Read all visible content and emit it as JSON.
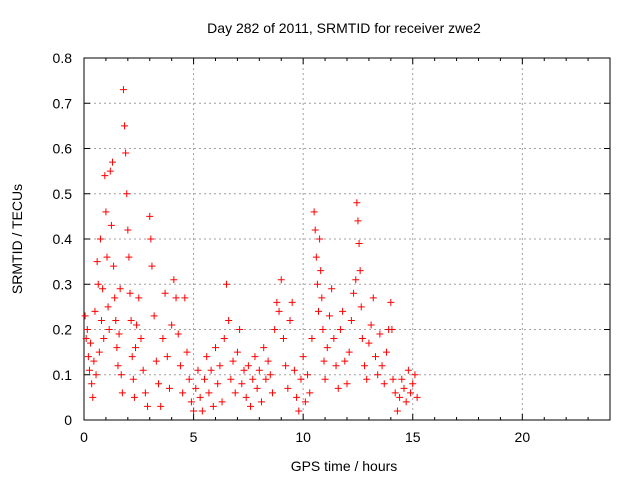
{
  "chart_data": {
    "type": "scatter",
    "title": "Day 282 of 2011, SRMTID for receiver zwe2",
    "xlabel": "GPS time / hours",
    "ylabel": "SRMTID / TECUs",
    "xlim": [
      0,
      24
    ],
    "ylim": [
      0,
      0.8
    ],
    "xticks": [
      0,
      5,
      10,
      15,
      20
    ],
    "xtick_labels": [
      "0",
      "5",
      "10",
      "15",
      "20"
    ],
    "yticks": [
      0,
      0.1,
      0.2,
      0.3,
      0.4,
      0.5,
      0.6,
      0.7,
      0.8
    ],
    "ytick_labels": [
      "0",
      "0.1",
      "0.2",
      "0.3",
      "0.4",
      "0.5",
      "0.6",
      "0.7",
      "0.8"
    ],
    "grid": true,
    "marker": "+",
    "color": "#ff0000",
    "series": [
      {
        "points": [
          [
            0.05,
            0.23
          ],
          [
            0.1,
            0.18
          ],
          [
            0.15,
            0.2
          ],
          [
            0.2,
            0.14
          ],
          [
            0.25,
            0.11
          ],
          [
            0.3,
            0.17
          ],
          [
            0.35,
            0.08
          ],
          [
            0.4,
            0.05
          ],
          [
            0.45,
            0.13
          ],
          [
            0.5,
            0.24
          ],
          [
            0.55,
            0.1
          ],
          [
            0.6,
            0.35
          ],
          [
            0.65,
            0.3
          ],
          [
            0.7,
            0.15
          ],
          [
            0.75,
            0.4
          ],
          [
            0.8,
            0.22
          ],
          [
            0.85,
            0.29
          ],
          [
            0.9,
            0.18
          ],
          [
            0.95,
            0.54
          ],
          [
            1.0,
            0.46
          ],
          [
            1.05,
            0.36
          ],
          [
            1.1,
            0.25
          ],
          [
            1.15,
            0.2
          ],
          [
            1.2,
            0.55
          ],
          [
            1.25,
            0.43
          ],
          [
            1.3,
            0.57
          ],
          [
            1.35,
            0.34
          ],
          [
            1.4,
            0.27
          ],
          [
            1.45,
            0.22
          ],
          [
            1.5,
            0.16
          ],
          [
            1.55,
            0.12
          ],
          [
            1.6,
            0.19
          ],
          [
            1.65,
            0.29
          ],
          [
            1.7,
            0.1
          ],
          [
            1.75,
            0.06
          ],
          [
            1.8,
            0.73
          ],
          [
            1.85,
            0.65
          ],
          [
            1.9,
            0.59
          ],
          [
            1.95,
            0.5
          ],
          [
            2.0,
            0.42
          ],
          [
            2.05,
            0.36
          ],
          [
            2.1,
            0.28
          ],
          [
            2.15,
            0.22
          ],
          [
            2.2,
            0.14
          ],
          [
            2.25,
            0.09
          ],
          [
            2.3,
            0.05
          ],
          [
            2.35,
            0.16
          ],
          [
            2.4,
            0.21
          ],
          [
            2.5,
            0.27
          ],
          [
            2.6,
            0.18
          ],
          [
            2.7,
            0.11
          ],
          [
            2.8,
            0.06
          ],
          [
            2.9,
            0.03
          ],
          [
            3.0,
            0.45
          ],
          [
            3.05,
            0.4
          ],
          [
            3.1,
            0.34
          ],
          [
            3.2,
            0.23
          ],
          [
            3.3,
            0.13
          ],
          [
            3.4,
            0.08
          ],
          [
            3.5,
            0.03
          ],
          [
            3.6,
            0.18
          ],
          [
            3.7,
            0.28
          ],
          [
            3.8,
            0.14
          ],
          [
            3.9,
            0.07
          ],
          [
            4.0,
            0.21
          ],
          [
            4.1,
            0.31
          ],
          [
            4.2,
            0.27
          ],
          [
            4.3,
            0.19
          ],
          [
            4.4,
            0.12
          ],
          [
            4.5,
            0.06
          ],
          [
            4.6,
            0.27
          ],
          [
            4.7,
            0.15
          ],
          [
            4.8,
            0.09
          ],
          [
            4.9,
            0.04
          ],
          [
            5.0,
            0.02
          ],
          [
            5.1,
            0.07
          ],
          [
            5.2,
            0.11
          ],
          [
            5.3,
            0.05
          ],
          [
            5.4,
            0.02
          ],
          [
            5.5,
            0.09
          ],
          [
            5.6,
            0.14
          ],
          [
            5.7,
            0.06
          ],
          [
            5.8,
            0.11
          ],
          [
            5.9,
            0.03
          ],
          [
            6.0,
            0.16
          ],
          [
            6.1,
            0.08
          ],
          [
            6.2,
            0.12
          ],
          [
            6.3,
            0.04
          ],
          [
            6.4,
            0.18
          ],
          [
            6.5,
            0.3
          ],
          [
            6.6,
            0.22
          ],
          [
            6.7,
            0.09
          ],
          [
            6.8,
            0.13
          ],
          [
            6.9,
            0.06
          ],
          [
            7.0,
            0.15
          ],
          [
            7.1,
            0.2
          ],
          [
            7.2,
            0.08
          ],
          [
            7.3,
            0.11
          ],
          [
            7.4,
            0.05
          ],
          [
            7.5,
            0.12
          ],
          [
            7.6,
            0.03
          ],
          [
            7.7,
            0.09
          ],
          [
            7.8,
            0.14
          ],
          [
            7.9,
            0.07
          ],
          [
            8.0,
            0.11
          ],
          [
            8.1,
            0.04
          ],
          [
            8.2,
            0.16
          ],
          [
            8.3,
            0.09
          ],
          [
            8.4,
            0.13
          ],
          [
            8.5,
            0.1
          ],
          [
            8.6,
            0.06
          ],
          [
            8.7,
            0.2
          ],
          [
            8.8,
            0.26
          ],
          [
            8.9,
            0.24
          ],
          [
            9.0,
            0.31
          ],
          [
            9.1,
            0.18
          ],
          [
            9.2,
            0.12
          ],
          [
            9.3,
            0.07
          ],
          [
            9.4,
            0.22
          ],
          [
            9.5,
            0.26
          ],
          [
            9.6,
            0.11
          ],
          [
            9.7,
            0.05
          ],
          [
            9.8,
            0.02
          ],
          [
            9.9,
            0.09
          ],
          [
            10.0,
            0.14
          ],
          [
            10.1,
            0.04
          ],
          [
            10.2,
            0.1
          ],
          [
            10.3,
            0.06
          ],
          [
            10.4,
            0.18
          ],
          [
            10.5,
            0.46
          ],
          [
            10.55,
            0.42
          ],
          [
            10.6,
            0.36
          ],
          [
            10.65,
            0.3
          ],
          [
            10.7,
            0.24
          ],
          [
            10.75,
            0.4
          ],
          [
            10.8,
            0.33
          ],
          [
            10.85,
            0.27
          ],
          [
            10.9,
            0.2
          ],
          [
            10.95,
            0.13
          ],
          [
            11.0,
            0.09
          ],
          [
            11.1,
            0.16
          ],
          [
            11.2,
            0.23
          ],
          [
            11.3,
            0.29
          ],
          [
            11.4,
            0.18
          ],
          [
            11.5,
            0.12
          ],
          [
            11.6,
            0.07
          ],
          [
            11.7,
            0.2
          ],
          [
            11.8,
            0.24
          ],
          [
            11.9,
            0.13
          ],
          [
            12.0,
            0.08
          ],
          [
            12.1,
            0.15
          ],
          [
            12.2,
            0.22
          ],
          [
            12.3,
            0.28
          ],
          [
            12.4,
            0.31
          ],
          [
            12.45,
            0.48
          ],
          [
            12.5,
            0.44
          ],
          [
            12.55,
            0.39
          ],
          [
            12.6,
            0.33
          ],
          [
            12.65,
            0.25
          ],
          [
            12.7,
            0.18
          ],
          [
            12.8,
            0.12
          ],
          [
            12.9,
            0.09
          ],
          [
            13.0,
            0.17
          ],
          [
            13.1,
            0.21
          ],
          [
            13.2,
            0.27
          ],
          [
            13.3,
            0.14
          ],
          [
            13.4,
            0.1
          ],
          [
            13.5,
            0.19
          ],
          [
            13.6,
            0.12
          ],
          [
            13.7,
            0.08
          ],
          [
            13.8,
            0.15
          ],
          [
            13.9,
            0.2
          ],
          [
            14.0,
            0.26
          ],
          [
            14.05,
            0.2
          ],
          [
            14.1,
            0.09
          ],
          [
            14.2,
            0.06
          ],
          [
            14.3,
            0.02
          ],
          [
            14.4,
            0.05
          ],
          [
            14.5,
            0.09
          ],
          [
            14.6,
            0.07
          ],
          [
            14.7,
            0.04
          ],
          [
            14.8,
            0.11
          ],
          [
            14.9,
            0.06
          ],
          [
            15.0,
            0.08
          ],
          [
            15.1,
            0.1
          ],
          [
            15.2,
            0.05
          ]
        ]
      }
    ]
  }
}
